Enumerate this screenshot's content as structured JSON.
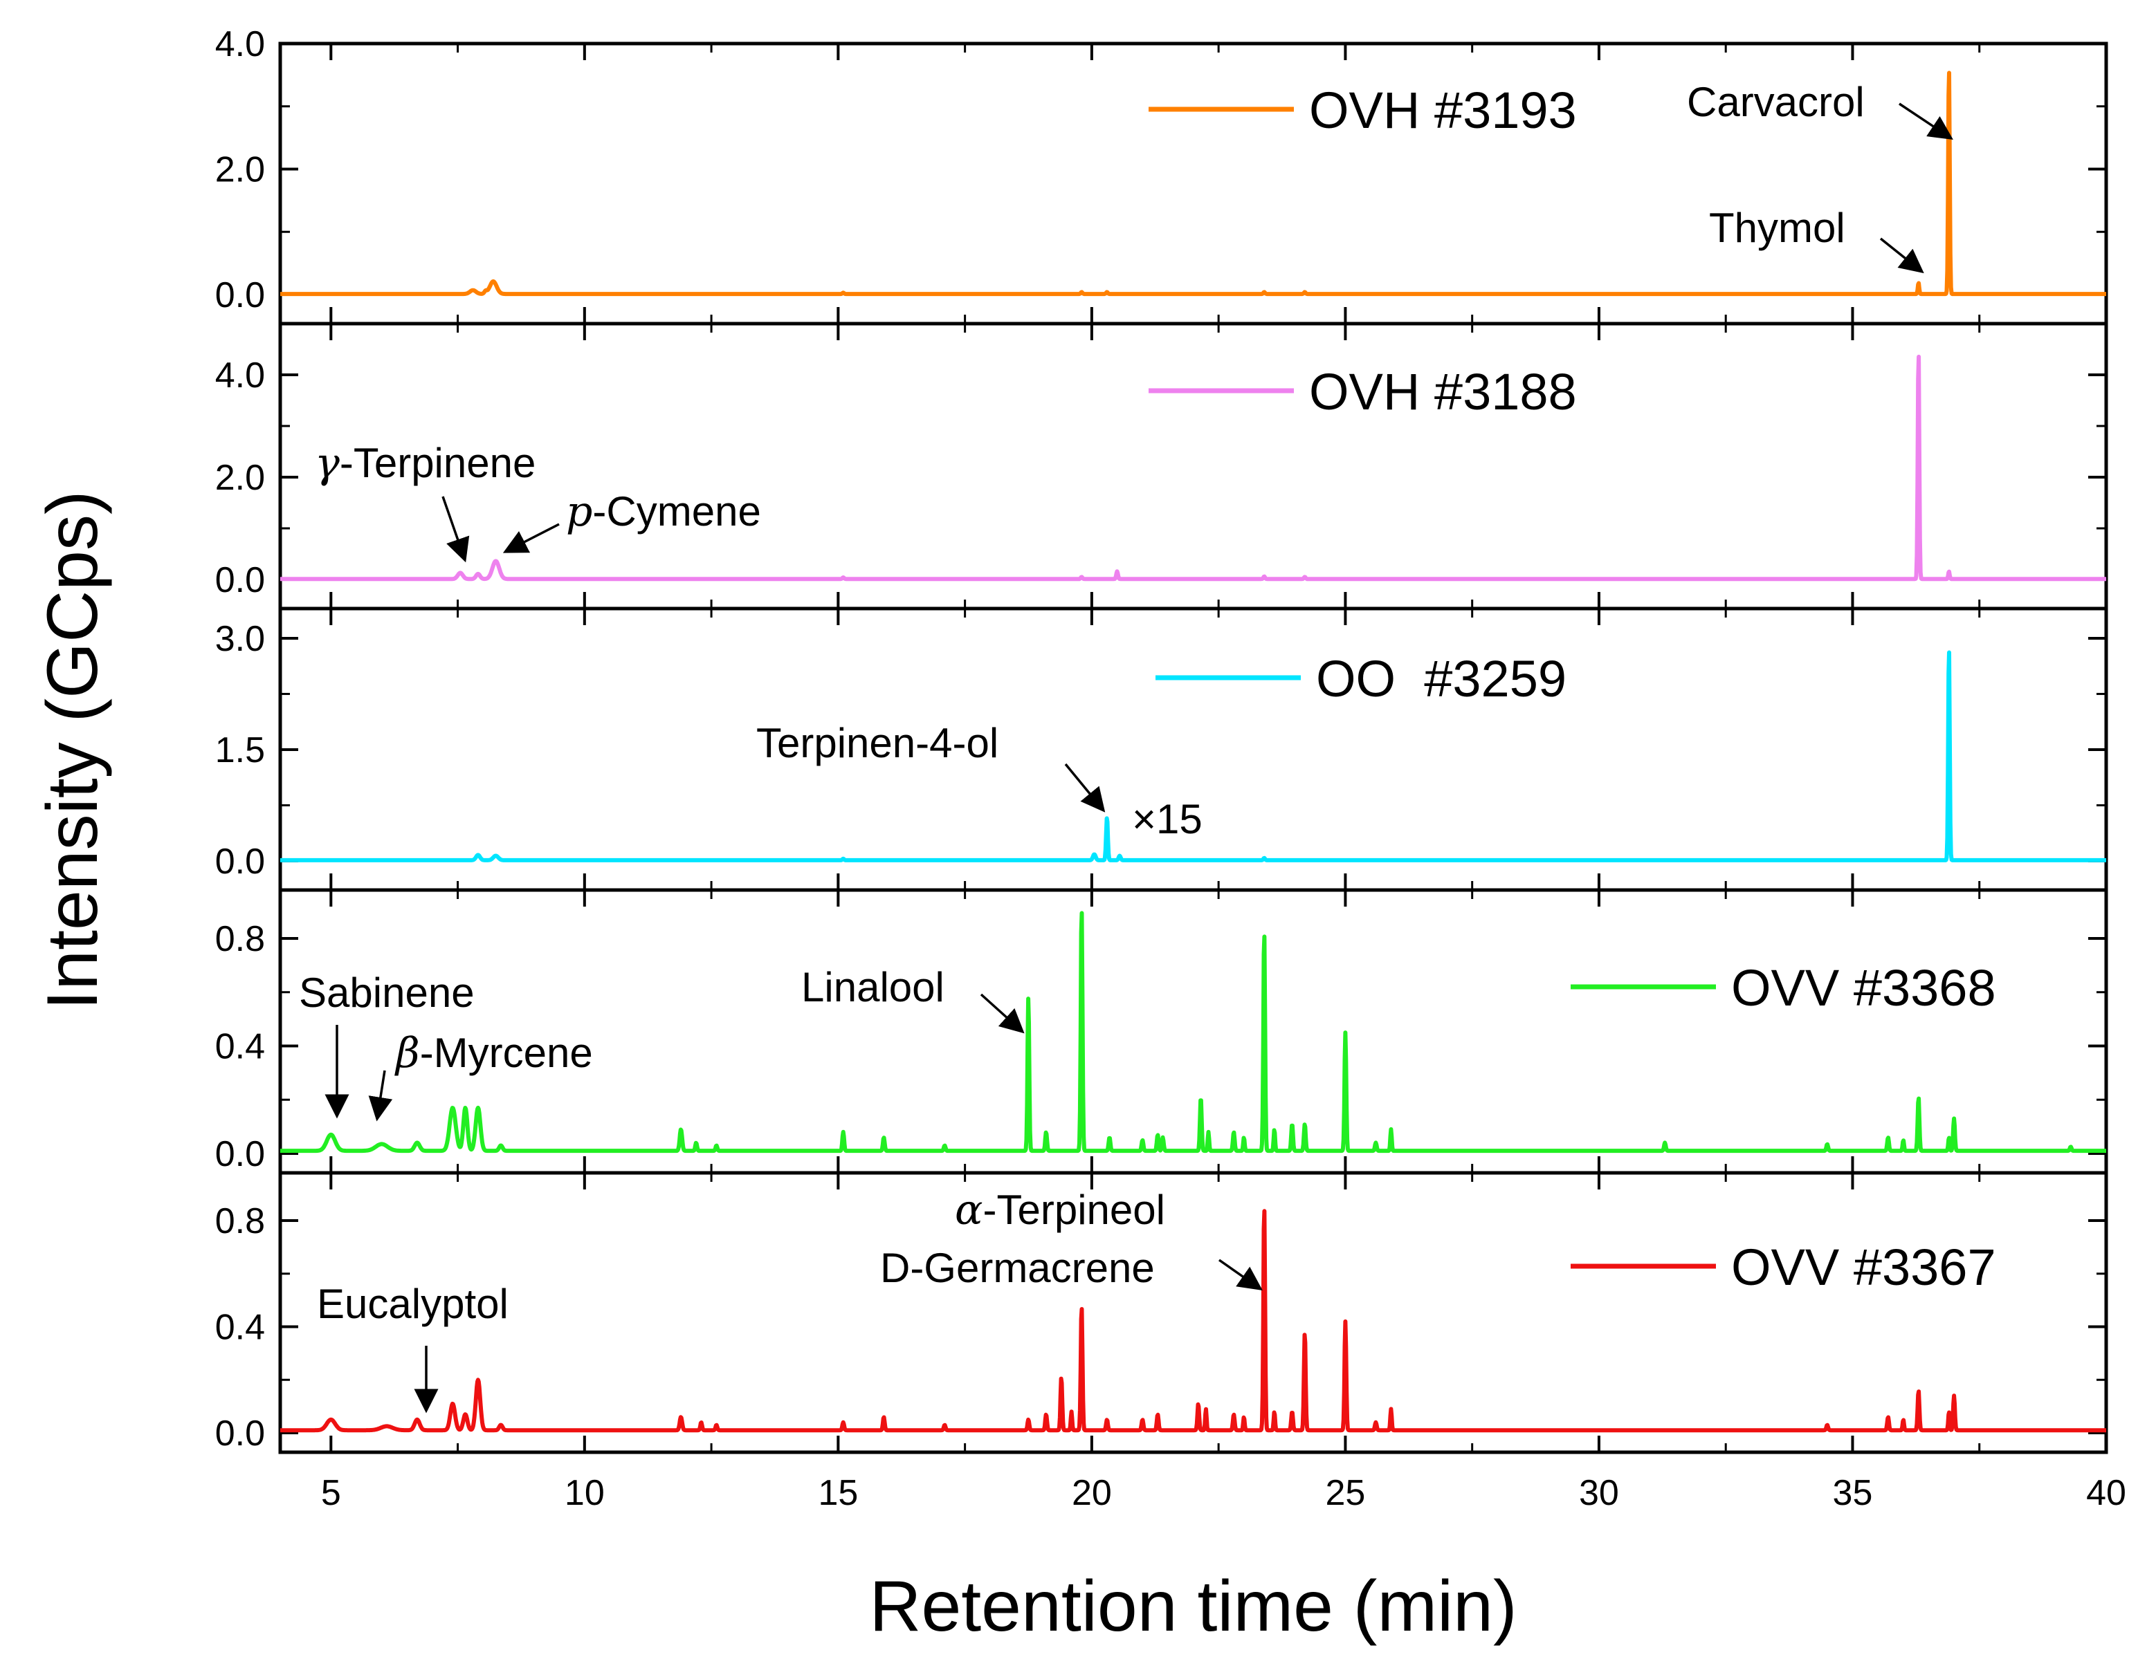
{
  "chart_data": {
    "type": "line",
    "xlabel": "Retention time (min)",
    "ylabel": "Intensity (GCps)",
    "xlim": [
      4,
      40
    ],
    "xticks": [
      "5",
      "10",
      "15",
      "20",
      "25",
      "30",
      "35",
      "40"
    ],
    "x_minor_ticks": true,
    "grid": false,
    "colors": {
      "OVH3193": "#ff8000",
      "OVH3188": "#ee82ee",
      "OO3259": "#00e5ff",
      "OVV3368": "#22ee22",
      "OVV3367": "#ee1111"
    },
    "panels": [
      {
        "legend": "OVH #3193",
        "color": "#ff8000",
        "ylim": [
          0,
          4.0
        ],
        "yticks": [
          "0.0",
          "2.0",
          "4.0"
        ],
        "baseline": 0.01,
        "peaks": [
          {
            "x": 7.8,
            "y": 0.06,
            "w": 0.18
          },
          {
            "x": 8.05,
            "y": 0.04,
            "w": 0.08
          },
          {
            "x": 8.2,
            "y": 0.2,
            "w": 0.2
          },
          {
            "x": 15.1,
            "y": 0.02,
            "w": 0.05
          },
          {
            "x": 19.8,
            "y": 0.03,
            "w": 0.05
          },
          {
            "x": 20.3,
            "y": 0.03,
            "w": 0.05
          },
          {
            "x": 23.4,
            "y": 0.03,
            "w": 0.05
          },
          {
            "x": 24.2,
            "y": 0.03,
            "w": 0.05
          },
          {
            "x": 36.3,
            "y": 0.18,
            "w": 0.04
          },
          {
            "x": 36.9,
            "y": 3.65,
            "w": 0.045
          }
        ],
        "annotations": [
          {
            "text": "Carvacrol",
            "x": 36.9,
            "y": 2.5
          },
          {
            "text": "Thymol",
            "x": 36.3,
            "y": 0.25
          }
        ]
      },
      {
        "legend": "OVH #3188",
        "color": "#ee82ee",
        "ylim": [
          0,
          5.0
        ],
        "yticks": [
          "0.0",
          "2.0",
          "4.0"
        ],
        "baseline": 0.01,
        "peaks": [
          {
            "x": 7.55,
            "y": 0.12,
            "w": 0.15
          },
          {
            "x": 7.9,
            "y": 0.1,
            "w": 0.12
          },
          {
            "x": 8.25,
            "y": 0.35,
            "w": 0.2
          },
          {
            "x": 15.1,
            "y": 0.03,
            "w": 0.05
          },
          {
            "x": 19.8,
            "y": 0.04,
            "w": 0.05
          },
          {
            "x": 20.5,
            "y": 0.15,
            "w": 0.05
          },
          {
            "x": 23.4,
            "y": 0.05,
            "w": 0.05
          },
          {
            "x": 24.2,
            "y": 0.04,
            "w": 0.05
          },
          {
            "x": 36.3,
            "y": 4.5,
            "w": 0.045
          },
          {
            "x": 36.9,
            "y": 0.15,
            "w": 0.04
          }
        ],
        "annotations": [
          {
            "text": "-Terpinene",
            "prefix": "γ",
            "x": 7.55,
            "y": 0.15
          },
          {
            "text": "-Cymene",
            "prefix": "p",
            "x": 8.25,
            "y": 0.4
          }
        ]
      },
      {
        "legend": "OO  #3259",
        "color": "#00e5ff",
        "ylim": [
          0,
          3.4
        ],
        "yticks": [
          "0.0",
          "1.5",
          "3.0"
        ],
        "baseline": 0.01,
        "peaks": [
          {
            "x": 7.9,
            "y": 0.07,
            "w": 0.12
          },
          {
            "x": 8.25,
            "y": 0.06,
            "w": 0.15
          },
          {
            "x": 15.1,
            "y": 0.02,
            "w": 0.05
          },
          {
            "x": 20.05,
            "y": 0.08,
            "w": 0.08
          },
          {
            "x": 20.3,
            "y": 0.58,
            "w": 0.05
          },
          {
            "x": 20.55,
            "y": 0.06,
            "w": 0.06
          },
          {
            "x": 23.4,
            "y": 0.03,
            "w": 0.05
          },
          {
            "x": 36.9,
            "y": 2.9,
            "w": 0.045
          }
        ],
        "annotations": [
          {
            "text": "Terpinen-4-ol",
            "x": 20.3,
            "y": 0.6
          },
          {
            "text": "×15",
            "x": 20.6,
            "y": 0.55
          }
        ]
      },
      {
        "legend": "OVV #3368",
        "color": "#22ee22",
        "ylim": [
          0,
          0.98
        ],
        "yticks": [
          "0.0",
          "0.4",
          "0.8"
        ],
        "baseline": 0.01,
        "peaks": [
          {
            "x": 5.0,
            "y": 0.06,
            "w": 0.25
          },
          {
            "x": 6.0,
            "y": 0.025,
            "w": 0.35
          },
          {
            "x": 6.7,
            "y": 0.03,
            "w": 0.15
          },
          {
            "x": 7.4,
            "y": 0.16,
            "w": 0.18
          },
          {
            "x": 7.65,
            "y": 0.16,
            "w": 0.12
          },
          {
            "x": 7.9,
            "y": 0.16,
            "w": 0.14
          },
          {
            "x": 8.35,
            "y": 0.02,
            "w": 0.1
          },
          {
            "x": 11.9,
            "y": 0.08,
            "w": 0.07
          },
          {
            "x": 12.2,
            "y": 0.03,
            "w": 0.05
          },
          {
            "x": 12.6,
            "y": 0.02,
            "w": 0.05
          },
          {
            "x": 15.1,
            "y": 0.07,
            "w": 0.05
          },
          {
            "x": 15.9,
            "y": 0.05,
            "w": 0.05
          },
          {
            "x": 17.1,
            "y": 0.02,
            "w": 0.05
          },
          {
            "x": 18.75,
            "y": 0.57,
            "w": 0.05
          },
          {
            "x": 19.1,
            "y": 0.07,
            "w": 0.05
          },
          {
            "x": 19.8,
            "y": 0.91,
            "w": 0.05
          },
          {
            "x": 20.35,
            "y": 0.05,
            "w": 0.05
          },
          {
            "x": 21.0,
            "y": 0.04,
            "w": 0.05
          },
          {
            "x": 21.3,
            "y": 0.06,
            "w": 0.05
          },
          {
            "x": 21.4,
            "y": 0.05,
            "w": 0.05
          },
          {
            "x": 22.15,
            "y": 0.2,
            "w": 0.05
          },
          {
            "x": 22.3,
            "y": 0.07,
            "w": 0.04
          },
          {
            "x": 22.8,
            "y": 0.07,
            "w": 0.05
          },
          {
            "x": 23.0,
            "y": 0.05,
            "w": 0.04
          },
          {
            "x": 23.4,
            "y": 0.82,
            "w": 0.05
          },
          {
            "x": 23.6,
            "y": 0.08,
            "w": 0.04
          },
          {
            "x": 23.95,
            "y": 0.1,
            "w": 0.05
          },
          {
            "x": 24.2,
            "y": 0.1,
            "w": 0.05
          },
          {
            "x": 25.0,
            "y": 0.44,
            "w": 0.05
          },
          {
            "x": 25.6,
            "y": 0.03,
            "w": 0.05
          },
          {
            "x": 25.9,
            "y": 0.08,
            "w": 0.04
          },
          {
            "x": 31.3,
            "y": 0.03,
            "w": 0.05
          },
          {
            "x": 34.5,
            "y": 0.025,
            "w": 0.05
          },
          {
            "x": 35.7,
            "y": 0.05,
            "w": 0.05
          },
          {
            "x": 36.0,
            "y": 0.04,
            "w": 0.04
          },
          {
            "x": 36.3,
            "y": 0.2,
            "w": 0.05
          },
          {
            "x": 36.9,
            "y": 0.05,
            "w": 0.04
          },
          {
            "x": 37.0,
            "y": 0.12,
            "w": 0.05
          },
          {
            "x": 39.3,
            "y": 0.015,
            "w": 0.05
          }
        ],
        "annotations": [
          {
            "text": "Sabinene",
            "x": 5.0,
            "y": 0.08
          },
          {
            "text": "-Myrcene",
            "prefix": "β",
            "x": 5.9,
            "y": 0.06
          },
          {
            "text": "Linalool",
            "x": 18.7,
            "y": 0.45
          }
        ]
      },
      {
        "legend": "OVV #3367",
        "color": "#ee1111",
        "ylim": [
          0,
          0.98
        ],
        "yticks": [
          "0.0",
          "0.4",
          "0.8"
        ],
        "baseline": 0.01,
        "peaks": [
          {
            "x": 5.0,
            "y": 0.04,
            "w": 0.25
          },
          {
            "x": 6.1,
            "y": 0.015,
            "w": 0.35
          },
          {
            "x": 6.7,
            "y": 0.04,
            "w": 0.15
          },
          {
            "x": 7.4,
            "y": 0.1,
            "w": 0.14
          },
          {
            "x": 7.65,
            "y": 0.06,
            "w": 0.12
          },
          {
            "x": 7.9,
            "y": 0.19,
            "w": 0.13
          },
          {
            "x": 8.35,
            "y": 0.02,
            "w": 0.1
          },
          {
            "x": 11.9,
            "y": 0.05,
            "w": 0.07
          },
          {
            "x": 12.3,
            "y": 0.03,
            "w": 0.05
          },
          {
            "x": 12.6,
            "y": 0.02,
            "w": 0.05
          },
          {
            "x": 15.1,
            "y": 0.03,
            "w": 0.05
          },
          {
            "x": 15.9,
            "y": 0.05,
            "w": 0.05
          },
          {
            "x": 17.1,
            "y": 0.02,
            "w": 0.05
          },
          {
            "x": 18.75,
            "y": 0.04,
            "w": 0.05
          },
          {
            "x": 19.1,
            "y": 0.06,
            "w": 0.05
          },
          {
            "x": 19.4,
            "y": 0.2,
            "w": 0.05
          },
          {
            "x": 19.6,
            "y": 0.07,
            "w": 0.04
          },
          {
            "x": 19.8,
            "y": 0.47,
            "w": 0.05
          },
          {
            "x": 20.3,
            "y": 0.04,
            "w": 0.05
          },
          {
            "x": 21.0,
            "y": 0.04,
            "w": 0.05
          },
          {
            "x": 21.3,
            "y": 0.06,
            "w": 0.05
          },
          {
            "x": 22.1,
            "y": 0.1,
            "w": 0.05
          },
          {
            "x": 22.25,
            "y": 0.08,
            "w": 0.04
          },
          {
            "x": 22.8,
            "y": 0.06,
            "w": 0.05
          },
          {
            "x": 23.0,
            "y": 0.05,
            "w": 0.04
          },
          {
            "x": 23.4,
            "y": 0.85,
            "w": 0.05
          },
          {
            "x": 23.6,
            "y": 0.07,
            "w": 0.04
          },
          {
            "x": 23.95,
            "y": 0.07,
            "w": 0.05
          },
          {
            "x": 24.2,
            "y": 0.37,
            "w": 0.05
          },
          {
            "x": 25.0,
            "y": 0.41,
            "w": 0.05
          },
          {
            "x": 25.6,
            "y": 0.03,
            "w": 0.05
          },
          {
            "x": 25.9,
            "y": 0.08,
            "w": 0.04
          },
          {
            "x": 34.5,
            "y": 0.02,
            "w": 0.05
          },
          {
            "x": 35.7,
            "y": 0.05,
            "w": 0.05
          },
          {
            "x": 36.0,
            "y": 0.04,
            "w": 0.04
          },
          {
            "x": 36.3,
            "y": 0.15,
            "w": 0.05
          },
          {
            "x": 36.9,
            "y": 0.07,
            "w": 0.04
          },
          {
            "x": 37.0,
            "y": 0.13,
            "w": 0.05
          }
        ],
        "annotations": [
          {
            "text": "Eucalyptol",
            "x": 6.7,
            "y": 0.06
          },
          {
            "text": "-Terpineol",
            "prefix": "α",
            "x": 23.4,
            "y": 0.6
          },
          {
            "text": "D-Germacrene",
            "x": 23.4,
            "y": 0.6
          }
        ]
      }
    ]
  }
}
